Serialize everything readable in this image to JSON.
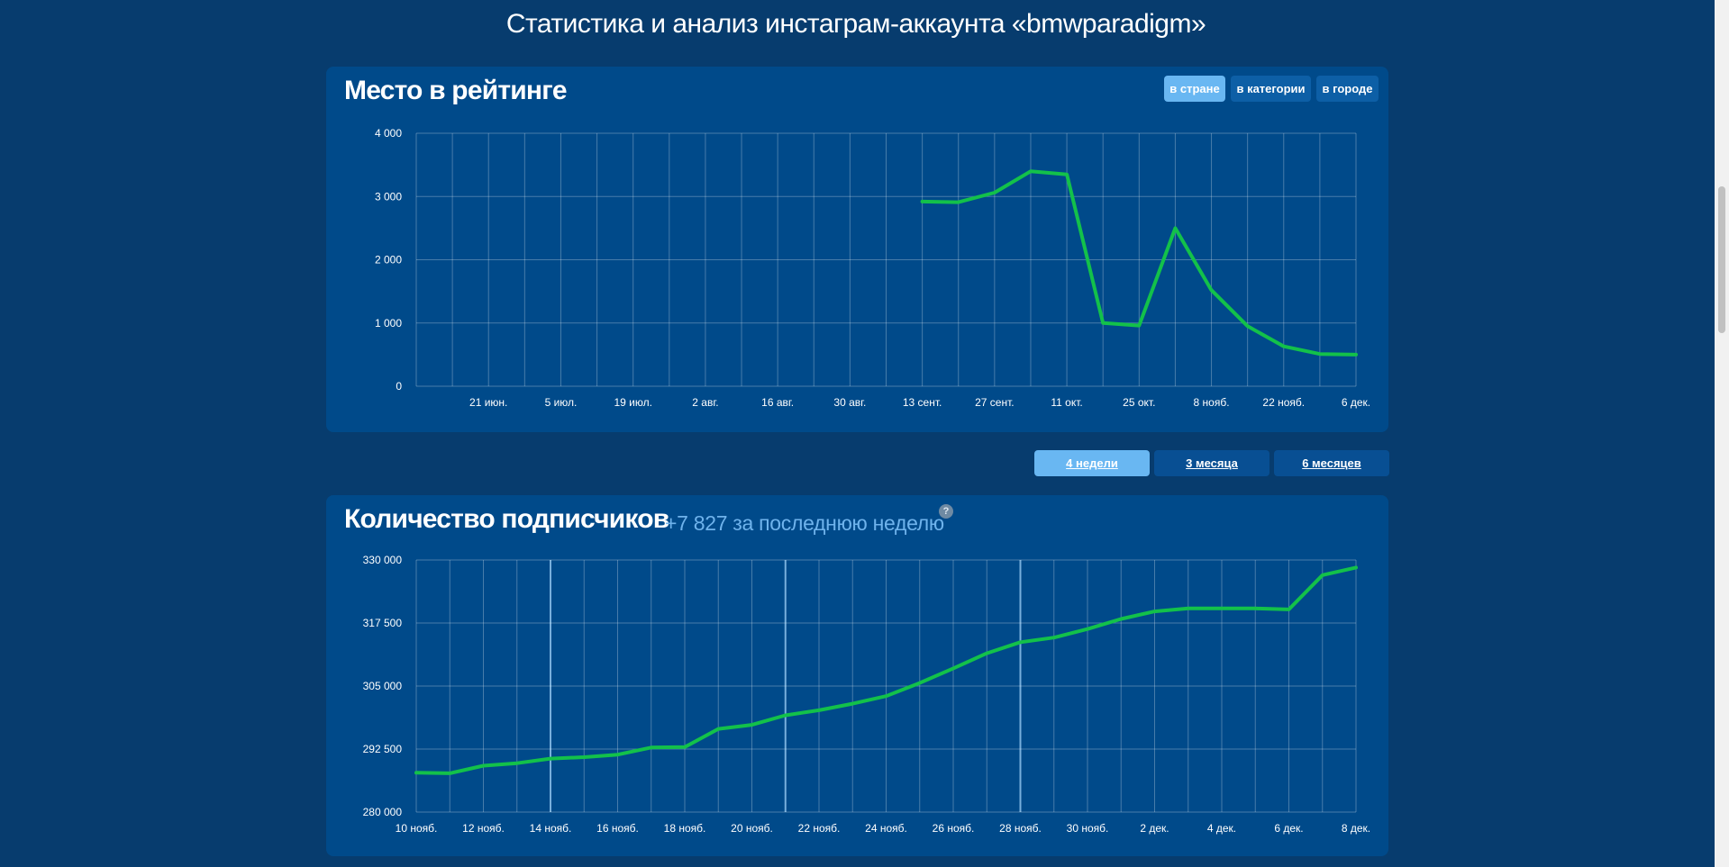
{
  "page_title": "Статистика и анализ инстаграм-аккаунта «bmwparadigm»",
  "rank_card": {
    "title": "Место в рейтинге",
    "scope_buttons": [
      {
        "label": "в стране",
        "active": true
      },
      {
        "label": "в категории",
        "active": false
      },
      {
        "label": "в городе",
        "active": false
      }
    ]
  },
  "period_buttons": [
    {
      "label": "4 недели",
      "active": true
    },
    {
      "label": "3 месяца",
      "active": false
    },
    {
      "label": "6 месяцев",
      "active": false
    }
  ],
  "subs_card": {
    "title": "Количество подписчиков",
    "subtitle": "+7 827 за последнюю неделю",
    "help": "?"
  },
  "colors": {
    "background": "#073c6e",
    "card": "#004a8a",
    "line": "#13c14a",
    "active_button": "#69b7f2"
  },
  "chart_data": [
    {
      "type": "line",
      "title": "Место в рейтинге",
      "ylim": [
        0,
        4000
      ],
      "y_ticks": [
        "0",
        "1 000",
        "2 000",
        "3 000",
        "4 000"
      ],
      "y_tick_values": [
        0,
        1000,
        2000,
        3000,
        4000
      ],
      "x_tick_labels": [
        "21 июн.",
        "5 июл.",
        "19 июл.",
        "2 авг.",
        "16 авг.",
        "30 авг.",
        "13 сент.",
        "27 сент.",
        "11 окт.",
        "25 окт.",
        "8 нояб.",
        "22 нояб.",
        "6 дек."
      ],
      "x_tick_index": [
        2,
        4,
        6,
        8,
        10,
        12,
        14,
        16,
        18,
        20,
        22,
        24,
        26
      ],
      "x_slots": 26,
      "grid": true,
      "series": [
        {
          "x": [
            14,
            15,
            16,
            17,
            18,
            19,
            20,
            21,
            22,
            23,
            24,
            25,
            26
          ],
          "values": [
            2920,
            2910,
            3060,
            3400,
            3350,
            1000,
            960,
            2500,
            1520,
            950,
            630,
            510,
            500
          ]
        }
      ]
    },
    {
      "type": "line",
      "title": "Количество подписчиков",
      "ylim": [
        280000,
        330000
      ],
      "y_ticks": [
        "280 000",
        "292 500",
        "305 000",
        "317 500",
        "330 000"
      ],
      "y_tick_values": [
        280000,
        292500,
        305000,
        317500,
        330000
      ],
      "x_tick_labels": [
        "10 нояб.",
        "12 нояб.",
        "14 нояб.",
        "16 нояб.",
        "18 нояб.",
        "20 нояб.",
        "22 нояб.",
        "24 нояб.",
        "26 нояб.",
        "28 нояб.",
        "30 нояб.",
        "2 дек.",
        "4 дек.",
        "6 дек.",
        "8 дек."
      ],
      "x_tick_index": [
        0,
        2,
        4,
        6,
        8,
        10,
        12,
        14,
        16,
        18,
        20,
        22,
        24,
        26,
        28
      ],
      "x_slots": 28,
      "week_markers": [
        4,
        11,
        18
      ],
      "grid": true,
      "series": [
        {
          "x": [
            0,
            1,
            2,
            3,
            4,
            5,
            6,
            7,
            8,
            9,
            10,
            11,
            12,
            13,
            14,
            15,
            16,
            17,
            18,
            19,
            20,
            21,
            22,
            23,
            24,
            25,
            26,
            27,
            28
          ],
          "values": [
            287800,
            287700,
            289200,
            289700,
            290600,
            290900,
            291400,
            292800,
            292900,
            296500,
            297300,
            299200,
            300200,
            301500,
            303000,
            305600,
            308500,
            311500,
            313700,
            314600,
            316300,
            318300,
            319800,
            320400,
            320400,
            320400,
            320200,
            327000,
            328500
          ]
        }
      ]
    }
  ]
}
